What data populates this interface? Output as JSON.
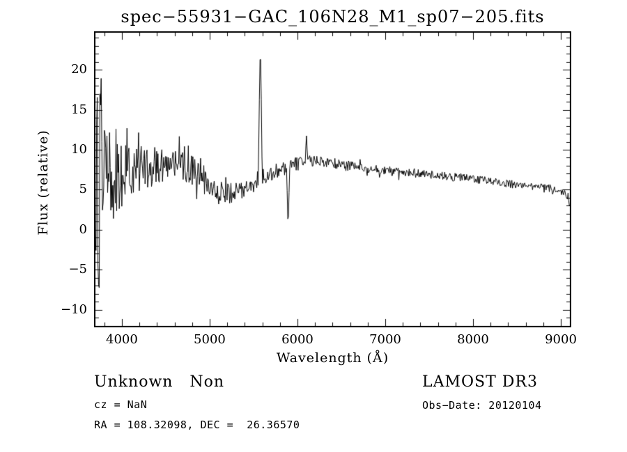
{
  "chart_data": {
    "type": "line",
    "title": "spec−55931−GAC_106N28_M1_sp07−205.fits",
    "xlabel": "Wavelength (Å)",
    "ylabel": "Flux (relative)",
    "xlim": [
      3683,
      9119
    ],
    "ylim": [
      -12.2,
      24.8
    ],
    "x_tick_values": [
      4000,
      5000,
      6000,
      7000,
      8000,
      9000
    ],
    "x_tick_labels": [
      "4000",
      "5000",
      "6000",
      "7000",
      "8000",
      "9000"
    ],
    "x_minor_step": 200,
    "y_tick_values": [
      -10,
      -5,
      0,
      5,
      10,
      15,
      20
    ],
    "y_tick_labels": [
      "−10",
      "−5",
      "0",
      "5",
      "10",
      "15",
      "20"
    ],
    "y_minor_step": 1,
    "grid": false,
    "legend": false,
    "line_color": "#000000",
    "background": "#ffffff",
    "series": {
      "name": "spectrum-flux",
      "n_points": 740,
      "seed": 20120104,
      "continuum": [
        [
          3683,
          5.0
        ],
        [
          3720,
          5.8
        ],
        [
          3800,
          6.4
        ],
        [
          3900,
          6.8
        ],
        [
          4000,
          7.0
        ],
        [
          4150,
          7.4
        ],
        [
          4300,
          7.8
        ],
        [
          4450,
          8.1
        ],
        [
          4600,
          8.3
        ],
        [
          4750,
          7.8
        ],
        [
          4900,
          6.5
        ],
        [
          5000,
          5.5
        ],
        [
          5100,
          4.7
        ],
        [
          5200,
          4.4
        ],
        [
          5300,
          4.7
        ],
        [
          5400,
          5.3
        ],
        [
          5500,
          6.0
        ],
        [
          5600,
          6.6
        ],
        [
          5700,
          7.1
        ],
        [
          5800,
          7.5
        ],
        [
          5900,
          7.9
        ],
        [
          6000,
          8.3
        ],
        [
          6150,
          8.6
        ],
        [
          6300,
          8.4
        ],
        [
          6500,
          8.1
        ],
        [
          6700,
          7.8
        ],
        [
          6900,
          7.5
        ],
        [
          7100,
          7.3
        ],
        [
          7300,
          7.1
        ],
        [
          7500,
          6.9
        ],
        [
          7700,
          6.7
        ],
        [
          7900,
          6.5
        ],
        [
          8100,
          6.2
        ],
        [
          8300,
          5.9
        ],
        [
          8500,
          5.6
        ],
        [
          8700,
          5.3
        ],
        [
          8900,
          5.1
        ],
        [
          9020,
          4.9
        ],
        [
          9080,
          4.2
        ],
        [
          9119,
          2.2
        ]
      ],
      "noise_amplitude": [
        [
          3683,
          8.5
        ],
        [
          3720,
          11.0
        ],
        [
          3760,
          10.0
        ],
        [
          3820,
          7.5
        ],
        [
          3900,
          5.5
        ],
        [
          4000,
          4.2
        ],
        [
          4150,
          3.2
        ],
        [
          4300,
          2.6
        ],
        [
          4500,
          2.2
        ],
        [
          4700,
          2.0
        ],
        [
          4900,
          1.8
        ],
        [
          5100,
          1.5
        ],
        [
          5300,
          1.3
        ],
        [
          5500,
          1.1
        ],
        [
          5700,
          0.95
        ],
        [
          5900,
          0.85
        ],
        [
          6100,
          0.75
        ],
        [
          6400,
          0.65
        ],
        [
          6800,
          0.6
        ],
        [
          7300,
          0.55
        ],
        [
          7900,
          0.5
        ],
        [
          8500,
          0.5
        ],
        [
          9000,
          0.55
        ],
        [
          9119,
          0.6
        ]
      ],
      "spikes": [
        {
          "x": 3738,
          "y": -9.2,
          "width": 12
        },
        {
          "x": 3762,
          "y": 21.4,
          "width": 12
        },
        {
          "x": 5577,
          "y": 23.5,
          "width": 20
        },
        {
          "x": 5893,
          "y": 0.1,
          "width": 15
        },
        {
          "x": 6102,
          "y": 11.9,
          "width": 14
        }
      ],
      "clip": [
        -10.6,
        21.6
      ]
    }
  },
  "footer": {
    "class_label": "Unknown   Non",
    "cz": "cz = NaN",
    "ra_dec": "RA = 108.32098, DEC =  26.36570",
    "survey": "LAMOST DR3",
    "obs_date": "Obs−Date: 20120104"
  }
}
